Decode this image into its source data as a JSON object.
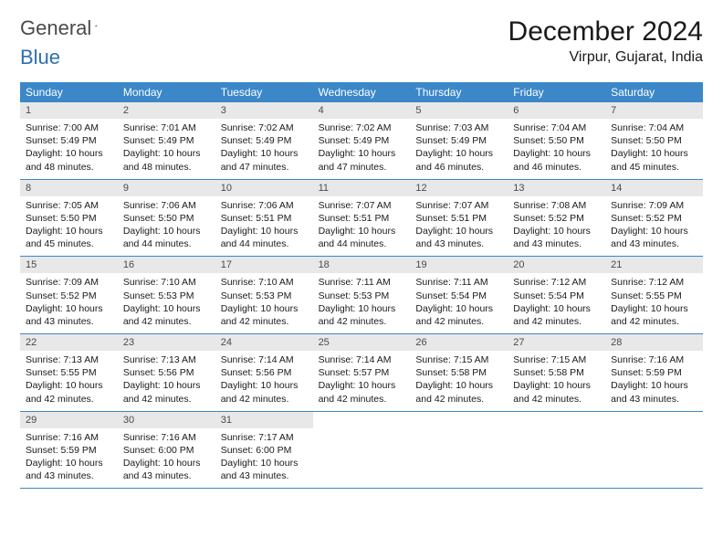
{
  "logo": {
    "text1": "General",
    "text2": "Blue"
  },
  "title": "December 2024",
  "subtitle": "Virpur, Gujarat, India",
  "colors": {
    "header_bg": "#3b87c8",
    "header_text": "#ffffff",
    "daynum_bg": "#e8e8e8",
    "row_border": "#3b87c8",
    "logo_blue": "#2e6fb0",
    "body_text": "#1a1a1a"
  },
  "day_names": [
    "Sunday",
    "Monday",
    "Tuesday",
    "Wednesday",
    "Thursday",
    "Friday",
    "Saturday"
  ],
  "weeks": [
    [
      {
        "num": "1",
        "sunrise": "Sunrise: 7:00 AM",
        "sunset": "Sunset: 5:49 PM",
        "day1": "Daylight: 10 hours",
        "day2": "and 48 minutes."
      },
      {
        "num": "2",
        "sunrise": "Sunrise: 7:01 AM",
        "sunset": "Sunset: 5:49 PM",
        "day1": "Daylight: 10 hours",
        "day2": "and 48 minutes."
      },
      {
        "num": "3",
        "sunrise": "Sunrise: 7:02 AM",
        "sunset": "Sunset: 5:49 PM",
        "day1": "Daylight: 10 hours",
        "day2": "and 47 minutes."
      },
      {
        "num": "4",
        "sunrise": "Sunrise: 7:02 AM",
        "sunset": "Sunset: 5:49 PM",
        "day1": "Daylight: 10 hours",
        "day2": "and 47 minutes."
      },
      {
        "num": "5",
        "sunrise": "Sunrise: 7:03 AM",
        "sunset": "Sunset: 5:49 PM",
        "day1": "Daylight: 10 hours",
        "day2": "and 46 minutes."
      },
      {
        "num": "6",
        "sunrise": "Sunrise: 7:04 AM",
        "sunset": "Sunset: 5:50 PM",
        "day1": "Daylight: 10 hours",
        "day2": "and 46 minutes."
      },
      {
        "num": "7",
        "sunrise": "Sunrise: 7:04 AM",
        "sunset": "Sunset: 5:50 PM",
        "day1": "Daylight: 10 hours",
        "day2": "and 45 minutes."
      }
    ],
    [
      {
        "num": "8",
        "sunrise": "Sunrise: 7:05 AM",
        "sunset": "Sunset: 5:50 PM",
        "day1": "Daylight: 10 hours",
        "day2": "and 45 minutes."
      },
      {
        "num": "9",
        "sunrise": "Sunrise: 7:06 AM",
        "sunset": "Sunset: 5:50 PM",
        "day1": "Daylight: 10 hours",
        "day2": "and 44 minutes."
      },
      {
        "num": "10",
        "sunrise": "Sunrise: 7:06 AM",
        "sunset": "Sunset: 5:51 PM",
        "day1": "Daylight: 10 hours",
        "day2": "and 44 minutes."
      },
      {
        "num": "11",
        "sunrise": "Sunrise: 7:07 AM",
        "sunset": "Sunset: 5:51 PM",
        "day1": "Daylight: 10 hours",
        "day2": "and 44 minutes."
      },
      {
        "num": "12",
        "sunrise": "Sunrise: 7:07 AM",
        "sunset": "Sunset: 5:51 PM",
        "day1": "Daylight: 10 hours",
        "day2": "and 43 minutes."
      },
      {
        "num": "13",
        "sunrise": "Sunrise: 7:08 AM",
        "sunset": "Sunset: 5:52 PM",
        "day1": "Daylight: 10 hours",
        "day2": "and 43 minutes."
      },
      {
        "num": "14",
        "sunrise": "Sunrise: 7:09 AM",
        "sunset": "Sunset: 5:52 PM",
        "day1": "Daylight: 10 hours",
        "day2": "and 43 minutes."
      }
    ],
    [
      {
        "num": "15",
        "sunrise": "Sunrise: 7:09 AM",
        "sunset": "Sunset: 5:52 PM",
        "day1": "Daylight: 10 hours",
        "day2": "and 43 minutes."
      },
      {
        "num": "16",
        "sunrise": "Sunrise: 7:10 AM",
        "sunset": "Sunset: 5:53 PM",
        "day1": "Daylight: 10 hours",
        "day2": "and 42 minutes."
      },
      {
        "num": "17",
        "sunrise": "Sunrise: 7:10 AM",
        "sunset": "Sunset: 5:53 PM",
        "day1": "Daylight: 10 hours",
        "day2": "and 42 minutes."
      },
      {
        "num": "18",
        "sunrise": "Sunrise: 7:11 AM",
        "sunset": "Sunset: 5:53 PM",
        "day1": "Daylight: 10 hours",
        "day2": "and 42 minutes."
      },
      {
        "num": "19",
        "sunrise": "Sunrise: 7:11 AM",
        "sunset": "Sunset: 5:54 PM",
        "day1": "Daylight: 10 hours",
        "day2": "and 42 minutes."
      },
      {
        "num": "20",
        "sunrise": "Sunrise: 7:12 AM",
        "sunset": "Sunset: 5:54 PM",
        "day1": "Daylight: 10 hours",
        "day2": "and 42 minutes."
      },
      {
        "num": "21",
        "sunrise": "Sunrise: 7:12 AM",
        "sunset": "Sunset: 5:55 PM",
        "day1": "Daylight: 10 hours",
        "day2": "and 42 minutes."
      }
    ],
    [
      {
        "num": "22",
        "sunrise": "Sunrise: 7:13 AM",
        "sunset": "Sunset: 5:55 PM",
        "day1": "Daylight: 10 hours",
        "day2": "and 42 minutes."
      },
      {
        "num": "23",
        "sunrise": "Sunrise: 7:13 AM",
        "sunset": "Sunset: 5:56 PM",
        "day1": "Daylight: 10 hours",
        "day2": "and 42 minutes."
      },
      {
        "num": "24",
        "sunrise": "Sunrise: 7:14 AM",
        "sunset": "Sunset: 5:56 PM",
        "day1": "Daylight: 10 hours",
        "day2": "and 42 minutes."
      },
      {
        "num": "25",
        "sunrise": "Sunrise: 7:14 AM",
        "sunset": "Sunset: 5:57 PM",
        "day1": "Daylight: 10 hours",
        "day2": "and 42 minutes."
      },
      {
        "num": "26",
        "sunrise": "Sunrise: 7:15 AM",
        "sunset": "Sunset: 5:58 PM",
        "day1": "Daylight: 10 hours",
        "day2": "and 42 minutes."
      },
      {
        "num": "27",
        "sunrise": "Sunrise: 7:15 AM",
        "sunset": "Sunset: 5:58 PM",
        "day1": "Daylight: 10 hours",
        "day2": "and 42 minutes."
      },
      {
        "num": "28",
        "sunrise": "Sunrise: 7:16 AM",
        "sunset": "Sunset: 5:59 PM",
        "day1": "Daylight: 10 hours",
        "day2": "and 43 minutes."
      }
    ],
    [
      {
        "num": "29",
        "sunrise": "Sunrise: 7:16 AM",
        "sunset": "Sunset: 5:59 PM",
        "day1": "Daylight: 10 hours",
        "day2": "and 43 minutes."
      },
      {
        "num": "30",
        "sunrise": "Sunrise: 7:16 AM",
        "sunset": "Sunset: 6:00 PM",
        "day1": "Daylight: 10 hours",
        "day2": "and 43 minutes."
      },
      {
        "num": "31",
        "sunrise": "Sunrise: 7:17 AM",
        "sunset": "Sunset: 6:00 PM",
        "day1": "Daylight: 10 hours",
        "day2": "and 43 minutes."
      },
      null,
      null,
      null,
      null
    ]
  ]
}
